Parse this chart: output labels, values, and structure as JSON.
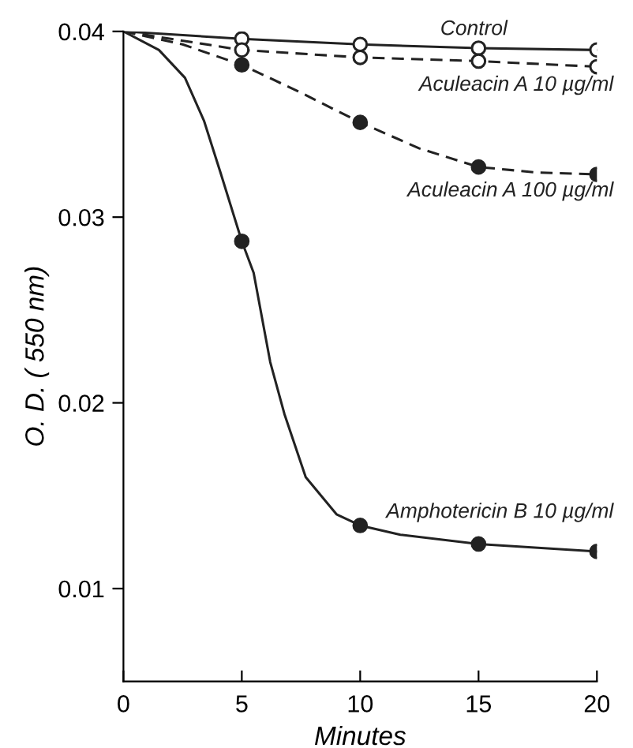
{
  "chart_data": {
    "type": "line",
    "xlabel": "Minutes",
    "ylabel": "O. D. ( 550 nm)",
    "x": [
      0,
      5,
      10,
      15,
      20
    ],
    "series": [
      {
        "name": "Control",
        "color": "#222222",
        "line_style": "solid",
        "marker": "none",
        "values": [
          0.04,
          0.0396,
          0.0393,
          0.0391,
          0.039
        ]
      },
      {
        "name": "Aculeacin A 10 µg/ml",
        "color": "#222222",
        "line_style": "dashed",
        "marker": "none",
        "values": [
          0.04,
          0.039,
          0.0386,
          0.0384,
          0.0381
        ]
      },
      {
        "name": "Aculeacin A 100 µg/ml",
        "color": "#222222",
        "line_style": "dashed",
        "marker": "none",
        "x": [
          0,
          2.5,
          5,
          7.5,
          10,
          12.5,
          15,
          17.5,
          20
        ],
        "values": [
          0.04,
          0.0393,
          0.0382,
          0.0367,
          0.0351,
          0.0337,
          0.0327,
          0.0324,
          0.0323
        ]
      },
      {
        "name": "Amphotericin B 10 µg/ml",
        "color": "#222222",
        "line_style": "solid",
        "marker": "none",
        "x": [
          0,
          1.5,
          2.6,
          3.4,
          4.1,
          5,
          5.5,
          6.2,
          6.8,
          7.7,
          9,
          10,
          11.7,
          15,
          20
        ],
        "values": [
          0.04,
          0.039,
          0.0375,
          0.0352,
          0.0324,
          0.0287,
          0.027,
          0.0222,
          0.0194,
          0.016,
          0.014,
          0.0134,
          0.0129,
          0.0124,
          0.012
        ]
      },
      {
        "type": "scatter",
        "color": "#222222",
        "marker": "circle",
        "x": [
          5,
          10,
          15,
          20
        ],
        "values": [
          0.0396,
          0.0393,
          0.0391,
          0.039
        ]
      },
      {
        "type": "scatter",
        "color": "#222222",
        "marker": "circle",
        "x": [
          5,
          10,
          15,
          20
        ],
        "values": [
          0.039,
          0.0386,
          0.0384,
          0.0381
        ]
      },
      {
        "type": "scatter",
        "color": "#222222",
        "marker": "circle",
        "x": [
          5,
          10,
          15,
          20
        ],
        "values": [
          0.0382,
          0.0351,
          0.0327,
          0.0323
        ]
      },
      {
        "type": "scatter",
        "color": "#222222",
        "marker": "circle",
        "x": [
          5,
          10,
          15,
          20
        ],
        "values": [
          0.0287,
          0.0134,
          0.0124,
          0.012
        ]
      }
    ],
    "xlim": [
      0,
      20
    ],
    "xticks": [
      0,
      5,
      10,
      15,
      20
    ],
    "ylim": [
      0.005,
      0.04
    ],
    "yticks": [
      {
        "value": 0.01,
        "label": "0.01"
      },
      {
        "value": 0.02,
        "label": "0.02"
      },
      {
        "value": 0.03,
        "label": "0.03"
      },
      {
        "value": 0.04,
        "label": "0.04"
      }
    ],
    "grid": false,
    "legend": false
  }
}
